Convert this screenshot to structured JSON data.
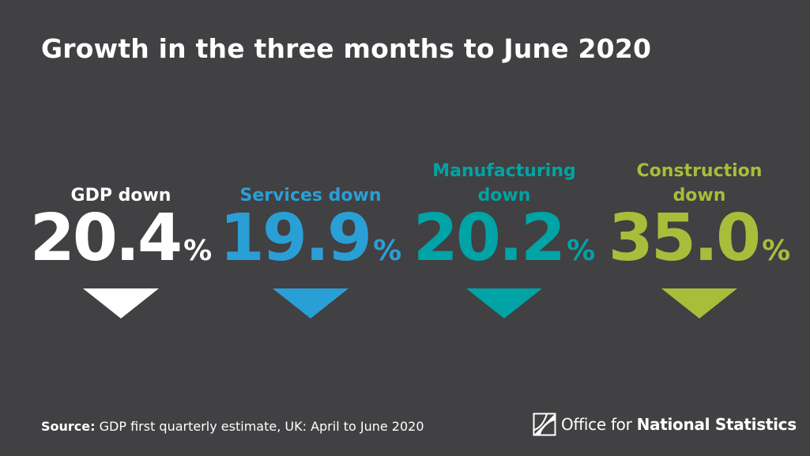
{
  "title": "Growth in the three months to June 2020",
  "colors": {
    "background": "#414042",
    "gdp": "#ffffff",
    "services": "#2a9fd6",
    "manufacturing": "#00a3a6",
    "construction": "#a8bd3a"
  },
  "stats": [
    {
      "label": "GDP down",
      "value": "20.4",
      "unit": "%",
      "icon": "down-arrow-icon"
    },
    {
      "label": "Services down",
      "value": "19.9",
      "unit": "%",
      "icon": "down-arrow-icon"
    },
    {
      "label": "Manufacturing\ndown",
      "value": "20.2",
      "unit": "%",
      "icon": "down-arrow-icon"
    },
    {
      "label": "Construction\ndown",
      "value": "35.0",
      "unit": "%",
      "icon": "down-arrow-icon"
    }
  ],
  "source": {
    "key": "Source:",
    "text": "GDP first quarterly estimate, UK: April to June 2020"
  },
  "logo": {
    "icon": "ons-logo-icon",
    "text_regular": "Office for ",
    "text_bold": "National Statistics"
  }
}
